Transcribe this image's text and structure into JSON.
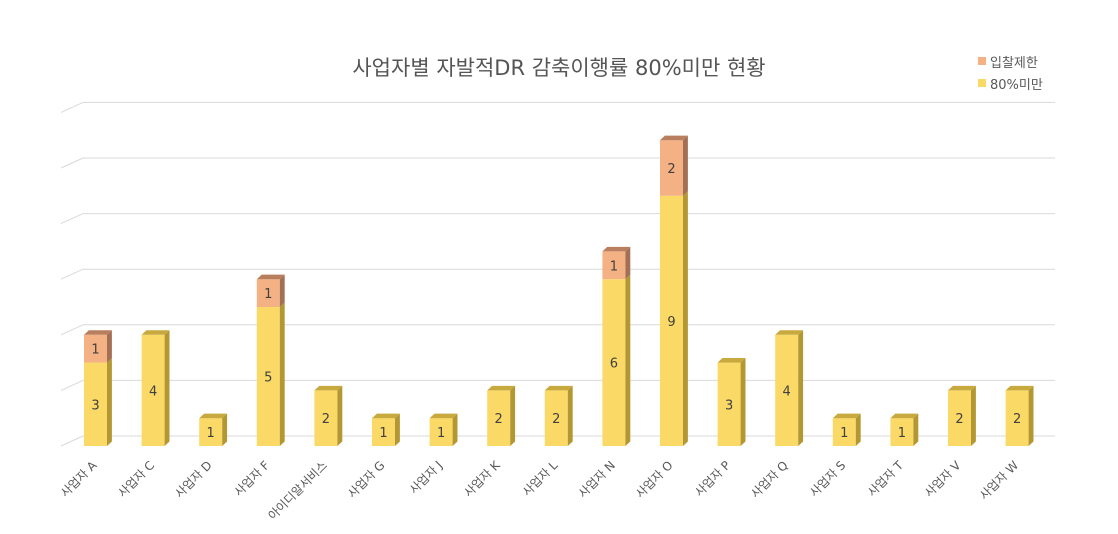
{
  "chart_data": {
    "type": "bar",
    "stacked": true,
    "three_d": true,
    "title": "사업자별 자발적DR 감축이행률 80%미만 현황",
    "legend_position": "top-right",
    "grid": true,
    "ylim": [
      0,
      12
    ],
    "categories": [
      "사업자 A",
      "사업자 C",
      "사업자 D",
      "사업자 F",
      "아이디알서비스",
      "사업자 G",
      "사업자 J",
      "사업자 K",
      "사업자 L",
      "사업자 N",
      "사업자 O",
      "사업자 P",
      "사업자 Q",
      "사업자 S",
      "사업자 T",
      "사업자 V",
      "사업자 W"
    ],
    "series": [
      {
        "name": "80%미만",
        "color": "#FAD966",
        "side_color": "#B39733",
        "top_color": "#C8A93E",
        "values": [
          3,
          4,
          1,
          5,
          2,
          1,
          1,
          2,
          2,
          6,
          9,
          3,
          4,
          1,
          1,
          2,
          2
        ]
      },
      {
        "name": "입찰제한",
        "color": "#F4B183",
        "side_color": "#A37054",
        "top_color": "#B97E5D",
        "values": [
          1,
          0,
          0,
          1,
          0,
          0,
          0,
          0,
          0,
          1,
          2,
          0,
          0,
          0,
          0,
          0,
          0
        ]
      }
    ]
  }
}
